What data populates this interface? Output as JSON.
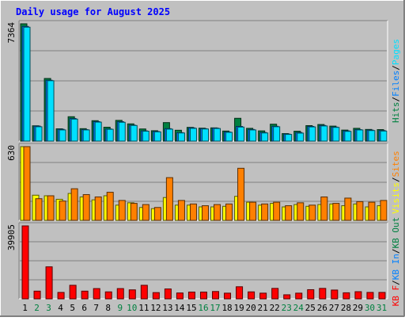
{
  "title": "Daily usage for August 2025",
  "colors": {
    "title": "#0000ff",
    "background": "#c0c0c0",
    "hits": "#008040",
    "files": "#0080ff",
    "pages": "#00e0ff",
    "visits": "#ffff00",
    "sites": "#ff8000",
    "kb_in": "#0080ff",
    "kb_out": "#008040",
    "kb_f": "#ff0000",
    "label_black": "#000000",
    "weekend_label": "#008040"
  },
  "chart_data": [
    {
      "type": "bar",
      "panel": "top",
      "ymax_label": "7364",
      "legend": [
        {
          "text": "Hits",
          "color_key": "hits"
        },
        {
          "text": "/",
          "color_key": "label_black"
        },
        {
          "text": "Files",
          "color_key": "files"
        },
        {
          "text": "/",
          "color_key": "label_black"
        },
        {
          "text": "Pages",
          "color_key": "pages"
        }
      ],
      "ymax": 7364,
      "categories": [
        "1",
        "2",
        "3",
        "4",
        "5",
        "6",
        "7",
        "8",
        "9",
        "10",
        "11",
        "12",
        "13",
        "14",
        "15",
        "16",
        "17",
        "18",
        "19",
        "20",
        "21",
        "22",
        "23",
        "24",
        "25",
        "26",
        "27",
        "28",
        "29",
        "30",
        "31"
      ],
      "series": [
        {
          "name": "Hits",
          "values": [
            7364,
            960,
            3930,
            770,
            1530,
            780,
            1280,
            870,
            1300,
            1080,
            760,
            650,
            1160,
            680,
            860,
            810,
            830,
            630,
            1430,
            800,
            640,
            1060,
            470,
            620,
            970,
            1040,
            940,
            690,
            800,
            730,
            720
          ]
        },
        {
          "name": "Files",
          "values": [
            7200,
            940,
            3820,
            740,
            1420,
            720,
            1220,
            760,
            1220,
            1000,
            640,
            600,
            780,
            530,
            830,
            780,
            810,
            570,
            920,
            730,
            540,
            930,
            440,
            540,
            920,
            980,
            880,
            640,
            720,
            690,
            660
          ]
        },
        {
          "name": "Pages",
          "values": [
            7150,
            900,
            3790,
            700,
            1380,
            700,
            1190,
            740,
            1180,
            980,
            620,
            580,
            750,
            510,
            800,
            760,
            790,
            550,
            880,
            700,
            510,
            900,
            420,
            500,
            890,
            950,
            860,
            610,
            700,
            660,
            630
          ]
        }
      ]
    },
    {
      "type": "bar",
      "panel": "middle",
      "ymax_label": "630",
      "legend": [
        {
          "text": "Visits",
          "color_key": "visits"
        },
        {
          "text": "/",
          "color_key": "label_black"
        },
        {
          "text": "Sites",
          "color_key": "sites"
        }
      ],
      "ymax": 630,
      "categories": [
        "1",
        "2",
        "3",
        "4",
        "5",
        "6",
        "7",
        "8",
        "9",
        "10",
        "11",
        "12",
        "13",
        "14",
        "15",
        "16",
        "17",
        "18",
        "19",
        "20",
        "21",
        "22",
        "23",
        "24",
        "25",
        "26",
        "27",
        "28",
        "29",
        "30",
        "31"
      ],
      "series": [
        {
          "name": "Visits",
          "values": [
            630,
            215,
            210,
            180,
            230,
            200,
            175,
            210,
            130,
            150,
            110,
            100,
            195,
            130,
            130,
            115,
            115,
            120,
            205,
            155,
            130,
            145,
            115,
            135,
            120,
            135,
            140,
            125,
            140,
            115,
            125
          ]
        },
        {
          "name": "Sites",
          "values": [
            630,
            185,
            210,
            165,
            270,
            220,
            200,
            240,
            170,
            145,
            135,
            110,
            365,
            170,
            140,
            125,
            135,
            140,
            445,
            155,
            140,
            155,
            125,
            150,
            130,
            200,
            145,
            190,
            160,
            155,
            170
          ]
        }
      ]
    },
    {
      "type": "bar",
      "panel": "bottom",
      "ymax_label": "39905",
      "legend": [
        {
          "text": "KB F",
          "color_key": "kb_f"
        },
        {
          "text": "/",
          "color_key": "label_black"
        },
        {
          "text": "KB In",
          "color_key": "kb_in"
        },
        {
          "text": "/",
          "color_key": "label_black"
        },
        {
          "text": "KB Out",
          "color_key": "kb_out"
        }
      ],
      "ymax": 39905,
      "categories": [
        "1",
        "2",
        "3",
        "4",
        "5",
        "6",
        "7",
        "8",
        "9",
        "10",
        "11",
        "12",
        "13",
        "14",
        "15",
        "16",
        "17",
        "18",
        "19",
        "20",
        "21",
        "22",
        "23",
        "24",
        "25",
        "26",
        "27",
        "28",
        "29",
        "30",
        "31"
      ],
      "series": [
        {
          "name": "KB F",
          "values": [
            39905,
            4200,
            17500,
            3500,
            7400,
            4200,
            5600,
            3800,
            5600,
            4900,
            7400,
            3400,
            5400,
            3200,
            3700,
            3700,
            4000,
            3100,
            6600,
            3800,
            3100,
            5700,
            2200,
            3100,
            5000,
            5700,
            4800,
            3300,
            3900,
            3500,
            3500
          ]
        }
      ]
    }
  ],
  "xlabels": {
    "weekend_days": [
      "2",
      "3",
      "9",
      "10",
      "16",
      "17",
      "23",
      "24",
      "30",
      "31"
    ]
  }
}
